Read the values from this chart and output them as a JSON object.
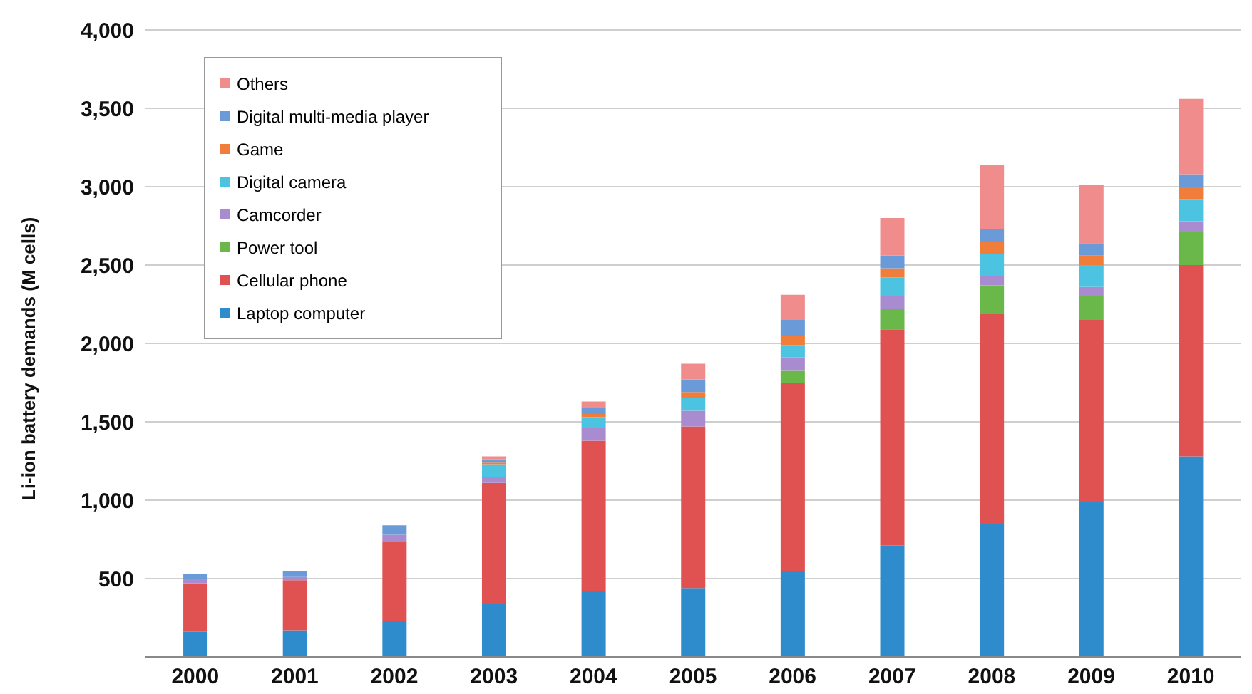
{
  "chart_data": {
    "type": "bar",
    "stacked": true,
    "ylabel": "Li-ion battery demands (M cells)",
    "categories": [
      "2000",
      "2001",
      "2002",
      "2003",
      "2004",
      "2005",
      "2006",
      "2007",
      "2008",
      "2009",
      "2010"
    ],
    "series": [
      {
        "name": "Laptop computer",
        "color": "#2e8bcc",
        "values": [
          160,
          170,
          230,
          340,
          420,
          440,
          550,
          710,
          850,
          990,
          1280
        ]
      },
      {
        "name": "Cellular phone",
        "color": "#e05252",
        "values": [
          310,
          320,
          510,
          770,
          960,
          1030,
          1200,
          1380,
          1340,
          1160,
          1220
        ]
      },
      {
        "name": "Power tool",
        "color": "#6ab84a",
        "values": [
          0,
          0,
          0,
          0,
          0,
          0,
          80,
          130,
          180,
          150,
          210
        ]
      },
      {
        "name": "Camcorder",
        "color": "#a98bd0",
        "values": [
          30,
          20,
          40,
          40,
          80,
          100,
          80,
          80,
          60,
          60,
          70
        ]
      },
      {
        "name": "Digital camera",
        "color": "#4cc3e0",
        "values": [
          0,
          0,
          0,
          80,
          70,
          80,
          80,
          120,
          140,
          140,
          140
        ]
      },
      {
        "name": "Game",
        "color": "#f07d3a",
        "values": [
          0,
          0,
          0,
          10,
          20,
          40,
          60,
          60,
          80,
          60,
          80
        ]
      },
      {
        "name": "Digital multi-media player",
        "color": "#6a9bd8",
        "values": [
          30,
          40,
          60,
          20,
          40,
          80,
          100,
          80,
          80,
          80,
          80
        ]
      },
      {
        "name": "Others",
        "color": "#f08c8c",
        "values": [
          0,
          0,
          0,
          20,
          40,
          100,
          160,
          240,
          410,
          370,
          480
        ]
      }
    ],
    "ylim": [
      0,
      4000
    ],
    "yticks": [
      {
        "value": 0,
        "label": null
      },
      {
        "value": 500,
        "label": "500"
      },
      {
        "value": 1000,
        "label": "1,000"
      },
      {
        "value": 1500,
        "label": "1,500"
      },
      {
        "value": 2000,
        "label": "2,000"
      },
      {
        "value": 2500,
        "label": "2,500"
      },
      {
        "value": 3000,
        "label": "3,000"
      },
      {
        "value": 3500,
        "label": "3,500"
      },
      {
        "value": 4000,
        "label": "4,000"
      }
    ],
    "grid": "y",
    "legend": "top left"
  }
}
